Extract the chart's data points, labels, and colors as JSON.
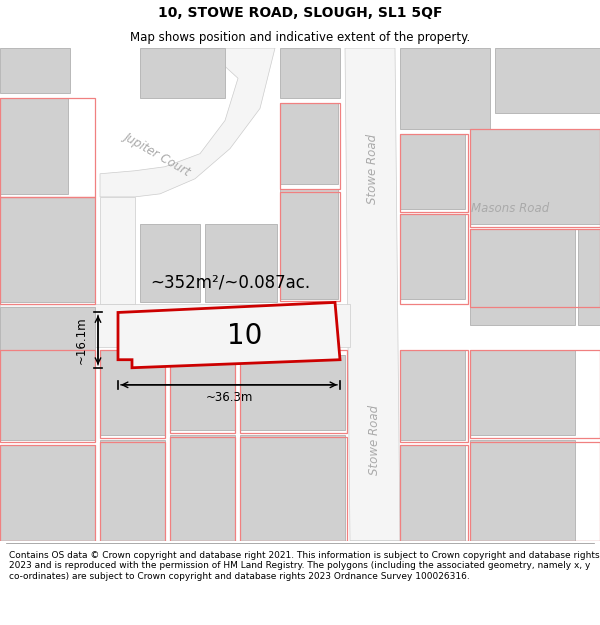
{
  "title": "10, STOWE ROAD, SLOUGH, SL1 5QF",
  "subtitle": "Map shows position and indicative extent of the property.",
  "footer": "Contains OS data © Crown copyright and database right 2021. This information is subject to Crown copyright and database rights 2023 and is reproduced with the permission of HM Land Registry. The polygons (including the associated geometry, namely x, y co-ordinates) are subject to Crown copyright and database rights 2023 Ordnance Survey 100026316.",
  "bg_color": "#e8e8e8",
  "map_bg": "#e8e8e8",
  "building_color": "#d0d0d0",
  "building_edge": "#b8b8b8",
  "road_color": "#f5f5f5",
  "plot_fill": "#f5f5f5",
  "plot_edge": "#cc0000",
  "plot_edge_width": 2.0,
  "area_label": "~352m²/~0.087ac.",
  "plot_label": "10",
  "width_label": "~36.3m",
  "height_label": "~16.1m",
  "street_label_stowe1": "Stowe Road",
  "street_label_stowe2": "Stowe Road",
  "street_label_jupiter": "Jupiter Court",
  "street_label_masons": "Masons Road",
  "neighbor_edge": "#f08080",
  "title_fontsize": 10,
  "subtitle_fontsize": 8.5,
  "footer_fontsize": 6.5
}
